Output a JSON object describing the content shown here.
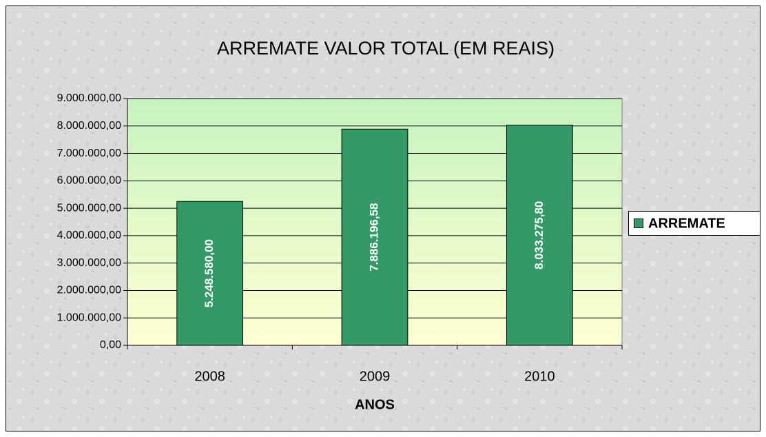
{
  "chart_data": {
    "type": "bar",
    "title": "ARREMATE VALOR TOTAL (EM REAIS)",
    "x_label": "ANOS",
    "categories": [
      "2008",
      "2009",
      "2010"
    ],
    "series": [
      {
        "name": "ARREMATE",
        "color": "#339966",
        "values": [
          5248580.0,
          7886196.58,
          8033275.8
        ],
        "value_labels": [
          "5.248.580,00",
          "7.886.196,58",
          "8.033.275,80"
        ]
      }
    ],
    "ylim": [
      0,
      9000000
    ],
    "yticks": [
      {
        "value": 0,
        "label": "0,00"
      },
      {
        "value": 1000000,
        "label": "1.000.000,00"
      },
      {
        "value": 2000000,
        "label": "2.000.000,00"
      },
      {
        "value": 3000000,
        "label": "3.000.000,00"
      },
      {
        "value": 4000000,
        "label": "4.000.000,00"
      },
      {
        "value": 5000000,
        "label": "5.000.000,00"
      },
      {
        "value": 6000000,
        "label": "6.000.000,00"
      },
      {
        "value": 7000000,
        "label": "7.000.000,00"
      },
      {
        "value": 8000000,
        "label": "8.000.000,00"
      },
      {
        "value": 9000000,
        "label": "9.000.000,00"
      }
    ],
    "grid": true,
    "legend": "right"
  }
}
